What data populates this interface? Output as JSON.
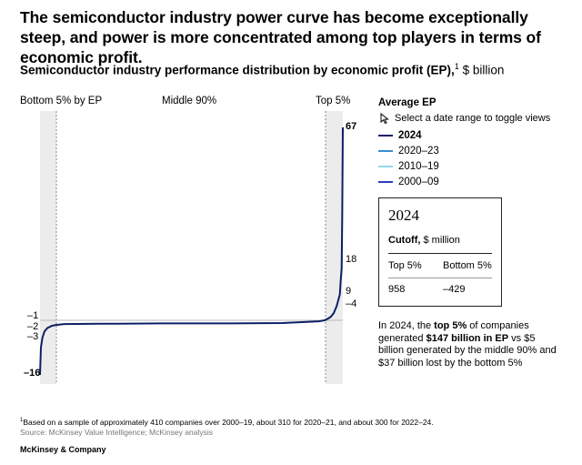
{
  "title": "The semiconductor industry power curve has become exceptionally steep, and power is more concentrated among top players in terms of economic profit.",
  "subtitle": {
    "main": "Semiconductor industry performance distribution by economic profit (EP),",
    "sup": "1",
    "unit": " $ billion"
  },
  "segments": {
    "bottom": "Bottom 5% by EP",
    "middle": "Middle 90%",
    "top": "Top 5%"
  },
  "legend": {
    "title": "Average EP",
    "hint": "Select a date range to toggle views",
    "items": [
      {
        "label": "2024",
        "color": "#0b1f66",
        "active": true
      },
      {
        "label": "2020–23",
        "color": "#3a8fd1",
        "active": false
      },
      {
        "label": "2010–19",
        "color": "#8fd8ee",
        "active": false
      },
      {
        "label": "2000–09",
        "color": "#2a40b8",
        "active": false
      }
    ]
  },
  "card": {
    "year": "2024",
    "cutoff_bold": "Cutoff,",
    "cutoff_unit": " $ million",
    "col1": "Top 5%",
    "col2": "Bottom 5%",
    "val1": "958",
    "val2": "–429"
  },
  "note": {
    "p1": "In 2024, the ",
    "b1": "top 5%",
    "p2": " of companies generated ",
    "b2": "$147 billion in EP",
    "p3": " vs $5 billion generated by the middle 90% and $37 billion lost by the bottom 5%"
  },
  "footnote": {
    "sup": "1",
    "text": "Based on a sample of approximately 410 companies over 2000–19, about 310 for 2020–21, and about 300 for 2022–24."
  },
  "source": "Source: McKinsey Value Intelligence; McKinsey analysis",
  "brand": "McKinsey & Company",
  "chart_data": {
    "type": "line",
    "series": [
      {
        "name": "2024",
        "x": [
          0,
          0.3,
          0.8,
          1.5,
          2.5,
          4,
          5,
          8,
          20,
          40,
          60,
          80,
          92,
          94,
          95,
          96,
          97,
          98,
          98.5,
          99,
          99.3,
          99.6,
          99.8,
          100
        ],
        "values": [
          -16,
          -8,
          -5,
          -3.2,
          -2.2,
          -1.6,
          -1.4,
          -1.1,
          -1.0,
          -0.9,
          -0.9,
          -0.8,
          -0.3,
          0,
          0.5,
          1.2,
          2.5,
          5,
          7,
          9,
          14,
          18,
          35,
          67
        ]
      }
    ],
    "xlim": [
      0,
      100
    ],
    "ylim": [
      -16,
      67
    ],
    "labeled_values_left": [
      "–1",
      "–2",
      "–3",
      "–16"
    ],
    "labeled_values_right": [
      "67",
      "18",
      "9",
      "–4"
    ],
    "shaded_regions": [
      "Bottom 5% by EP",
      "Top 5%"
    ],
    "grid": false
  }
}
